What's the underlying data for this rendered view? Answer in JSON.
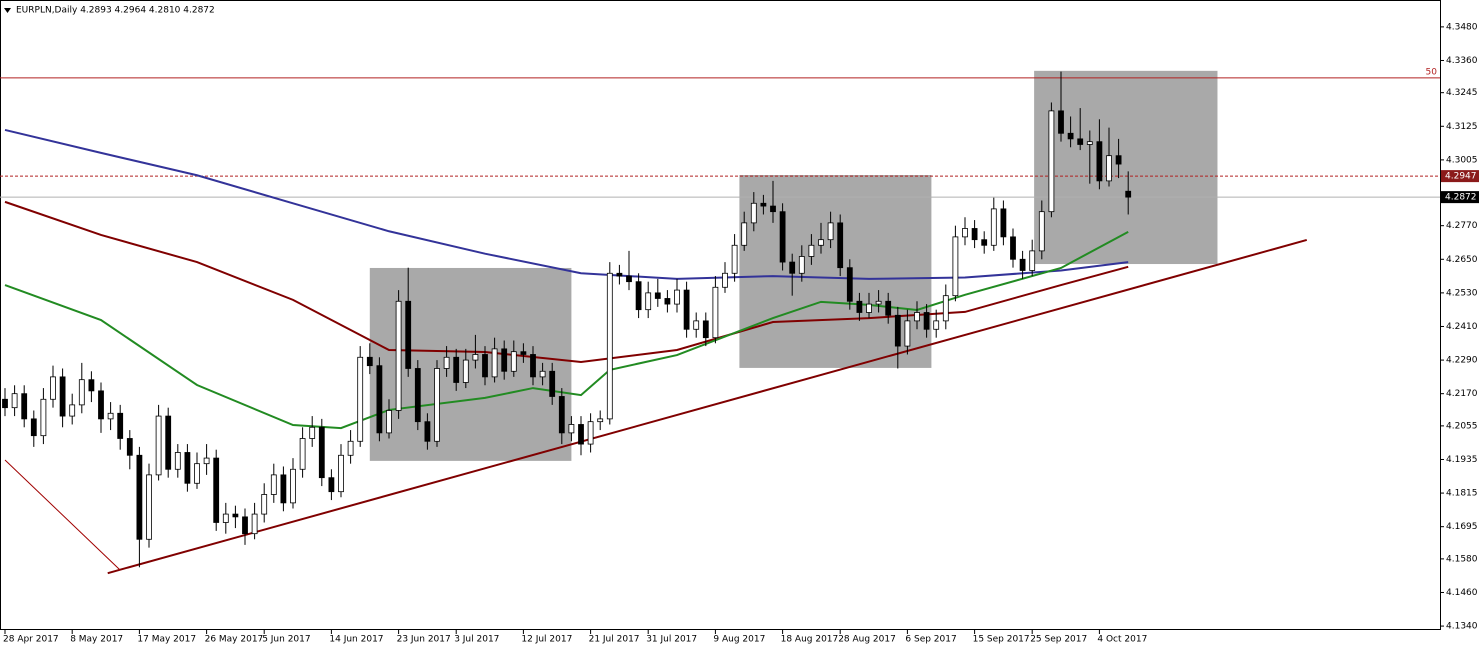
{
  "chart_data": {
    "type": "candlestick",
    "title": "EURPLN,Daily  4.2893 4.2964 4.2810 4.2872",
    "ylim": [
      4.1326,
      4.3576
    ],
    "yticks": [
      {
        "value": 4.348,
        "label": "4.3480"
      },
      {
        "value": 4.336,
        "label": "4.3360"
      },
      {
        "value": 4.3245,
        "label": "4.3245"
      },
      {
        "value": 4.3125,
        "label": "4.3125"
      },
      {
        "value": 4.3005,
        "label": "4.3005"
      },
      {
        "value": 4.277,
        "label": "4.2770"
      },
      {
        "value": 4.265,
        "label": "4.2650"
      },
      {
        "value": 4.253,
        "label": "4.2530"
      },
      {
        "value": 4.241,
        "label": "4.2410"
      },
      {
        "value": 4.229,
        "label": "4.2290"
      },
      {
        "value": 4.217,
        "label": "4.2170"
      },
      {
        "value": 4.2055,
        "label": "4.2055"
      },
      {
        "value": 4.1935,
        "label": "4.1935"
      },
      {
        "value": 4.1815,
        "label": "4.1815"
      },
      {
        "value": 4.1695,
        "label": "4.1695"
      },
      {
        "value": 4.158,
        "label": "4.1580"
      },
      {
        "value": 4.146,
        "label": "4.1460"
      },
      {
        "value": 4.134,
        "label": "4.1340"
      }
    ],
    "xticks": [
      {
        "value": 0,
        "label": "28 Apr 2017"
      },
      {
        "value": 7,
        "label": "8 May 2017"
      },
      {
        "value": 14,
        "label": "17 May 2017"
      },
      {
        "value": 21,
        "label": "26 May 2017"
      },
      {
        "value": 27,
        "label": "5 Jun 2017"
      },
      {
        "value": 34,
        "label": "14 Jun 2017"
      },
      {
        "value": 41,
        "label": "23 Jun 2017"
      },
      {
        "value": 47,
        "label": "3 Jul 2017"
      },
      {
        "value": 54,
        "label": "12 Jul 2017"
      },
      {
        "value": 61,
        "label": "21 Jul 2017"
      },
      {
        "value": 67,
        "label": "31 Jul 2017"
      },
      {
        "value": 74,
        "label": "9 Aug 2017"
      },
      {
        "value": 81,
        "label": "18 Aug 2017"
      },
      {
        "value": 87,
        "label": "28 Aug 2017"
      },
      {
        "value": 94,
        "label": "6 Sep 2017"
      },
      {
        "value": 101,
        "label": "15 Sep 2017"
      },
      {
        "value": 107,
        "label": "25 Sep 2017"
      },
      {
        "value": 114,
        "label": "4 Oct 2017"
      }
    ],
    "candles": [
      [
        4.215,
        4.219,
        4.209,
        4.212
      ],
      [
        4.212,
        4.22,
        4.209,
        4.217
      ],
      [
        4.217,
        4.22,
        4.205,
        4.208
      ],
      [
        4.208,
        4.211,
        4.198,
        4.202
      ],
      [
        4.202,
        4.219,
        4.199,
        4.215
      ],
      [
        4.215,
        4.227,
        4.212,
        4.223
      ],
      [
        4.223,
        4.226,
        4.205,
        4.209
      ],
      [
        4.209,
        4.217,
        4.206,
        4.213
      ],
      [
        4.213,
        4.228,
        4.21,
        4.222
      ],
      [
        4.222,
        4.225,
        4.214,
        4.218
      ],
      [
        4.218,
        4.221,
        4.203,
        4.208
      ],
      [
        4.208,
        4.214,
        4.204,
        4.21
      ],
      [
        4.21,
        4.213,
        4.197,
        4.201
      ],
      [
        4.201,
        4.204,
        4.19,
        4.195
      ],
      [
        4.195,
        4.198,
        4.155,
        4.165
      ],
      [
        4.165,
        4.192,
        4.162,
        4.188
      ],
      [
        4.188,
        4.213,
        4.186,
        4.209
      ],
      [
        4.209,
        4.212,
        4.187,
        4.19
      ],
      [
        4.19,
        4.199,
        4.187,
        4.196
      ],
      [
        4.196,
        4.199,
        4.182,
        4.185
      ],
      [
        4.185,
        4.196,
        4.183,
        4.192
      ],
      [
        4.192,
        4.199,
        4.188,
        4.194
      ],
      [
        4.194,
        4.197,
        4.168,
        4.171
      ],
      [
        4.171,
        4.178,
        4.167,
        4.174
      ],
      [
        4.174,
        4.177,
        4.169,
        4.173
      ],
      [
        4.173,
        4.176,
        4.163,
        4.167
      ],
      [
        4.167,
        4.178,
        4.165,
        4.174
      ],
      [
        4.174,
        4.185,
        4.171,
        4.181
      ],
      [
        4.181,
        4.192,
        4.178,
        4.188
      ],
      [
        4.188,
        4.191,
        4.175,
        4.178
      ],
      [
        4.178,
        4.194,
        4.176,
        4.19
      ],
      [
        4.19,
        4.205,
        4.187,
        4.201
      ],
      [
        4.201,
        4.209,
        4.198,
        4.205
      ],
      [
        4.205,
        4.208,
        4.184,
        4.187
      ],
      [
        4.187,
        4.19,
        4.179,
        4.182
      ],
      [
        4.182,
        4.199,
        4.18,
        4.195
      ],
      [
        4.195,
        4.204,
        4.192,
        4.2
      ],
      [
        4.2,
        4.234,
        4.198,
        4.23
      ],
      [
        4.23,
        4.235,
        4.224,
        4.227
      ],
      [
        4.227,
        4.23,
        4.2,
        4.203
      ],
      [
        4.203,
        4.215,
        4.201,
        4.211
      ],
      [
        4.211,
        4.254,
        4.208,
        4.25
      ],
      [
        4.25,
        4.262,
        4.223,
        4.226
      ],
      [
        4.226,
        4.229,
        4.204,
        4.207
      ],
      [
        4.207,
        4.21,
        4.197,
        4.2
      ],
      [
        4.2,
        4.229,
        4.198,
        4.226
      ],
      [
        4.226,
        4.234,
        4.223,
        4.23
      ],
      [
        4.23,
        4.233,
        4.218,
        4.221
      ],
      [
        4.221,
        4.233,
        4.219,
        4.229
      ],
      [
        4.229,
        4.238,
        4.226,
        4.231
      ],
      [
        4.231,
        4.234,
        4.22,
        4.223
      ],
      [
        4.223,
        4.237,
        4.221,
        4.233
      ],
      [
        4.233,
        4.236,
        4.222,
        4.225
      ],
      [
        4.225,
        4.236,
        4.223,
        4.232
      ],
      [
        4.232,
        4.235,
        4.228,
        4.231
      ],
      [
        4.231,
        4.234,
        4.22,
        4.223
      ],
      [
        4.223,
        4.228,
        4.22,
        4.225
      ],
      [
        4.225,
        4.228,
        4.213,
        4.216
      ],
      [
        4.216,
        4.219,
        4.199,
        4.203
      ],
      [
        4.203,
        4.209,
        4.2,
        4.206
      ],
      [
        4.206,
        4.209,
        4.195,
        4.199
      ],
      [
        4.199,
        4.21,
        4.196,
        4.207
      ],
      [
        4.207,
        4.211,
        4.204,
        4.208
      ],
      [
        4.208,
        4.264,
        4.206,
        4.26
      ],
      [
        4.26,
        4.263,
        4.256,
        4.259
      ],
      [
        4.259,
        4.268,
        4.254,
        4.257
      ],
      [
        4.257,
        4.26,
        4.244,
        4.247
      ],
      [
        4.247,
        4.257,
        4.244,
        4.253
      ],
      [
        4.253,
        4.258,
        4.248,
        4.251
      ],
      [
        4.251,
        4.254,
        4.246,
        4.249
      ],
      [
        4.249,
        4.258,
        4.246,
        4.254
      ],
      [
        4.254,
        4.257,
        4.237,
        4.24
      ],
      [
        4.24,
        4.246,
        4.237,
        4.243
      ],
      [
        4.243,
        4.246,
        4.234,
        4.237
      ],
      [
        4.237,
        4.259,
        4.235,
        4.255
      ],
      [
        4.255,
        4.264,
        4.253,
        4.26
      ],
      [
        4.26,
        4.274,
        4.257,
        4.27
      ],
      [
        4.27,
        4.282,
        4.268,
        4.278
      ],
      [
        4.278,
        4.289,
        4.275,
        4.285
      ],
      [
        4.285,
        4.288,
        4.281,
        4.284
      ],
      [
        4.284,
        4.293,
        4.278,
        4.282
      ],
      [
        4.282,
        4.285,
        4.261,
        4.264
      ],
      [
        4.264,
        4.267,
        4.252,
        4.26
      ],
      [
        4.26,
        4.27,
        4.257,
        4.266
      ],
      [
        4.266,
        4.274,
        4.263,
        4.27
      ],
      [
        4.27,
        4.278,
        4.267,
        4.272
      ],
      [
        4.272,
        4.282,
        4.269,
        4.278
      ],
      [
        4.278,
        4.281,
        4.259,
        4.262
      ],
      [
        4.262,
        4.265,
        4.247,
        4.25
      ],
      [
        4.25,
        4.253,
        4.243,
        4.246
      ],
      [
        4.246,
        4.253,
        4.244,
        4.249
      ],
      [
        4.249,
        4.254,
        4.246,
        4.25
      ],
      [
        4.25,
        4.253,
        4.242,
        4.245
      ],
      [
        4.245,
        4.248,
        4.226,
        4.234
      ],
      [
        4.234,
        4.247,
        4.231,
        4.243
      ],
      [
        4.243,
        4.25,
        4.24,
        4.246
      ],
      [
        4.246,
        4.249,
        4.237,
        4.24
      ],
      [
        4.24,
        4.247,
        4.237,
        4.243
      ],
      [
        4.243,
        4.256,
        4.24,
        4.252
      ],
      [
        4.252,
        4.277,
        4.25,
        4.273
      ],
      [
        4.273,
        4.28,
        4.27,
        4.276
      ],
      [
        4.276,
        4.279,
        4.269,
        4.272
      ],
      [
        4.272,
        4.275,
        4.267,
        4.27
      ],
      [
        4.27,
        4.287,
        4.268,
        4.283
      ],
      [
        4.283,
        4.286,
        4.27,
        4.273
      ],
      [
        4.273,
        4.276,
        4.262,
        4.265
      ],
      [
        4.265,
        4.268,
        4.258,
        4.261
      ],
      [
        4.261,
        4.272,
        4.259,
        4.268
      ],
      [
        4.268,
        4.286,
        4.265,
        4.282
      ],
      [
        4.282,
        4.321,
        4.28,
        4.318
      ],
      [
        4.318,
        4.332,
        4.307,
        4.31
      ],
      [
        4.31,
        4.316,
        4.305,
        4.308
      ],
      [
        4.308,
        4.319,
        4.304,
        4.306
      ],
      [
        4.306,
        4.311,
        4.292,
        4.307
      ],
      [
        4.307,
        4.315,
        4.29,
        4.293
      ],
      [
        4.293,
        4.312,
        4.291,
        4.302
      ],
      [
        4.302,
        4.308,
        4.294,
        4.299
      ],
      [
        4.2893,
        4.2964,
        4.281,
        4.2872
      ]
    ],
    "series": [
      {
        "color": "#333399",
        "x": [
          0,
          10,
          20,
          30,
          40,
          50,
          60,
          70,
          80,
          90,
          100,
          110,
          117
        ],
        "values": [
          4.3112,
          4.303,
          4.295,
          4.285,
          4.275,
          4.267,
          4.26,
          4.258,
          4.259,
          4.258,
          4.2585,
          4.261,
          4.264
        ]
      },
      {
        "color": "#800000",
        "x": [
          0,
          10,
          20,
          30,
          40,
          50,
          60,
          70,
          80,
          90,
          100,
          110,
          117
        ],
        "values": [
          4.2855,
          4.2737,
          4.264,
          4.2505,
          4.2326,
          4.2319,
          4.2283,
          4.2326,
          4.2426,
          4.244,
          4.2462,
          4.2558,
          4.2623
        ]
      },
      {
        "color": "#228b22",
        "x": [
          0,
          10,
          20,
          30,
          35,
          40,
          50,
          55,
          60,
          63,
          70,
          80,
          85,
          90,
          95,
          100,
          110,
          117
        ],
        "values": [
          4.2558,
          4.2433,
          4.2201,
          4.2058,
          4.2047,
          4.2112,
          4.2155,
          4.219,
          4.2165,
          4.2255,
          4.2308,
          4.244,
          4.2498,
          4.2487,
          4.2469,
          4.2523,
          4.2619,
          4.2748
        ]
      }
    ],
    "boxes": [
      {
        "x": [
          38,
          59
        ],
        "y": [
          4.193,
          4.2619
        ]
      },
      {
        "x": [
          76.5,
          96.5
        ],
        "y": [
          4.2262,
          4.2951
        ]
      },
      {
        "x": [
          107.2,
          126.3
        ],
        "y": [
          4.2633,
          4.3323
        ]
      }
    ],
    "trendlines": [
      {
        "color": "#800000",
        "width": 2,
        "x": [
          10.7,
          135.6
        ],
        "y": [
          4.1529,
          4.2719
        ]
      },
      {
        "color": "#a00000",
        "width": 1,
        "x": [
          0,
          12
        ],
        "y": [
          4.1933,
          4.154
        ]
      }
    ],
    "hlines": [
      {
        "value": 4.3298,
        "color": "#b22222",
        "label": "50"
      },
      {
        "value": 4.2947,
        "color": "#b22222",
        "dashed": true,
        "label": "4.2947"
      },
      {
        "value": 4.2872,
        "color": "#b0b0b0",
        "label": "4.2872"
      }
    ]
  }
}
